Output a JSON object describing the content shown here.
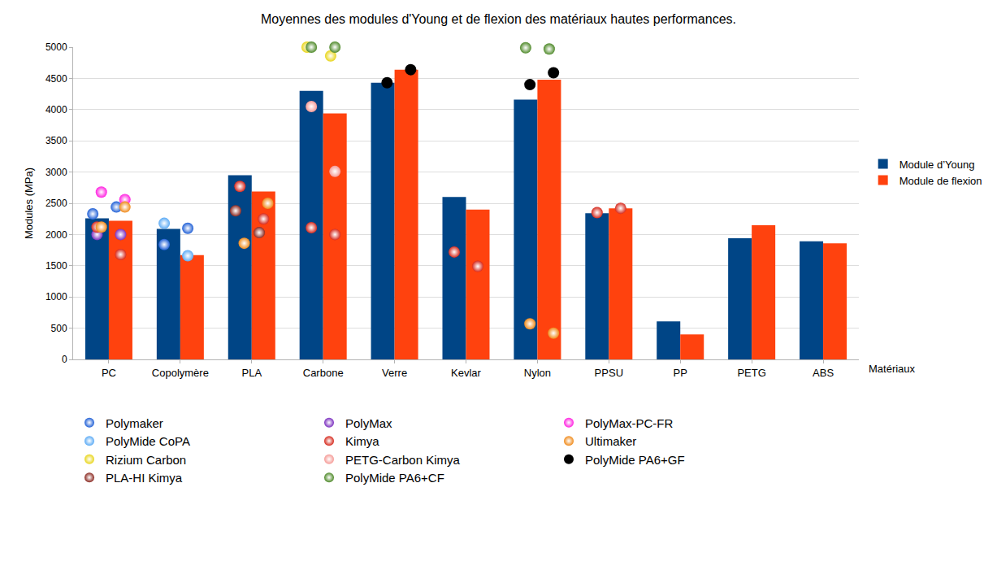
{
  "chart_data": {
    "type": "bar",
    "title": "Moyennes des modules d'Young et de flexion des matériaux hautes performances.",
    "x_label": "Matériaux",
    "y_label": "Modules (MPa)",
    "categories": [
      "PC",
      "Copolymère",
      "PLA",
      "Carbone",
      "Verre",
      "Kevlar",
      "Nylon",
      "PPSU",
      "PP",
      "PETG",
      "ABS"
    ],
    "ylim": [
      0,
      5000
    ],
    "yticks": [
      0,
      500,
      1000,
      1500,
      2000,
      2500,
      3000,
      3500,
      4000,
      4500,
      5000
    ],
    "grid": true,
    "legend": "right",
    "series": [
      {
        "name": "Module d’Young",
        "color": "#004586",
        "type": "bar",
        "values": [
          2260,
          2090,
          2950,
          4300,
          4430,
          2600,
          4160,
          2340,
          610,
          1940,
          1890
        ]
      },
      {
        "name": "Module de flexion",
        "color": "#ff420e",
        "type": "bar",
        "values": [
          2220,
          1670,
          2690,
          3940,
          4640,
          2400,
          4480,
          2420,
          400,
          2150,
          1860
        ]
      },
      {
        "name": "Polymaker",
        "color": "#1f5fd6",
        "type": "scatter",
        "marker": "circle",
        "values": [
          [
            2330,
            2440
          ],
          [
            1840,
            2100
          ],
          null,
          null,
          null,
          null,
          null,
          null,
          null,
          null,
          null
        ]
      },
      {
        "name": "PolyMax",
        "color": "#7b2fbf",
        "type": "scatter",
        "marker": "circle",
        "values": [
          [
            2000,
            2000
          ],
          null,
          null,
          null,
          null,
          null,
          null,
          null,
          null,
          null,
          null
        ]
      },
      {
        "name": "PolyMax-PC-FR",
        "color": "#ff1fe0",
        "type": "scatter",
        "marker": "circle",
        "values": [
          [
            2680,
            2560
          ],
          null,
          null,
          null,
          null,
          null,
          null,
          null,
          null,
          null,
          null
        ]
      },
      {
        "name": "PolyMide CoPA",
        "color": "#5aaaf5",
        "type": "scatter",
        "marker": "circle",
        "values": [
          null,
          [
            2180,
            1660
          ],
          null,
          null,
          null,
          null,
          null,
          null,
          null,
          null,
          null
        ]
      },
      {
        "name": "Kimya",
        "color": "#d62a1e",
        "type": "scatter",
        "marker": "circle",
        "values": [
          [
            2120,
            1680
          ],
          null,
          [
            2770,
            2250
          ],
          [
            2110,
            2000
          ],
          null,
          [
            1720,
            1490
          ],
          null,
          [
            2350,
            2420
          ],
          null,
          null,
          null
        ]
      },
      {
        "name": "Ultimaker",
        "color": "#f08a1a",
        "type": "scatter",
        "marker": "circle",
        "values": [
          [
            2120,
            2440
          ],
          null,
          [
            1860,
            2500
          ],
          null,
          null,
          null,
          [
            570,
            420
          ],
          null,
          null,
          null,
          null
        ]
      },
      {
        "name": "Rizium Carbon",
        "color": "#e8d51a",
        "type": "scatter",
        "marker": "circle",
        "values": [
          null,
          null,
          null,
          [
            5000,
            4860
          ],
          null,
          null,
          null,
          null,
          null,
          null,
          null
        ]
      },
      {
        "name": "PETG-Carbon Kimya",
        "color": "#f59a96",
        "type": "scatter",
        "marker": "circle",
        "values": [
          null,
          null,
          null,
          [
            4050,
            3010
          ],
          null,
          null,
          null,
          null,
          null,
          null,
          null
        ]
      },
      {
        "name": "PolyMide PA6+GF",
        "color": "#000000",
        "type": "scatter",
        "marker": "circle",
        "values": [
          null,
          null,
          null,
          null,
          [
            4430,
            4640
          ],
          null,
          [
            4400,
            4590
          ],
          null,
          null,
          null,
          null
        ]
      },
      {
        "name": "PLA-HI Kimya",
        "color": "#8b2a22",
        "type": "scatter",
        "marker": "circle",
        "values": [
          null,
          null,
          [
            2380,
            2030
          ],
          null,
          null,
          null,
          null,
          null,
          null,
          null,
          null
        ]
      },
      {
        "name": "PolyMide PA6+CF",
        "color": "#4f8a2a",
        "type": "scatter",
        "marker": "circle",
        "values": [
          null,
          null,
          null,
          [
            5000,
            5000
          ],
          null,
          null,
          [
            4990,
            4970
          ],
          null,
          null,
          null,
          null
        ]
      }
    ]
  }
}
